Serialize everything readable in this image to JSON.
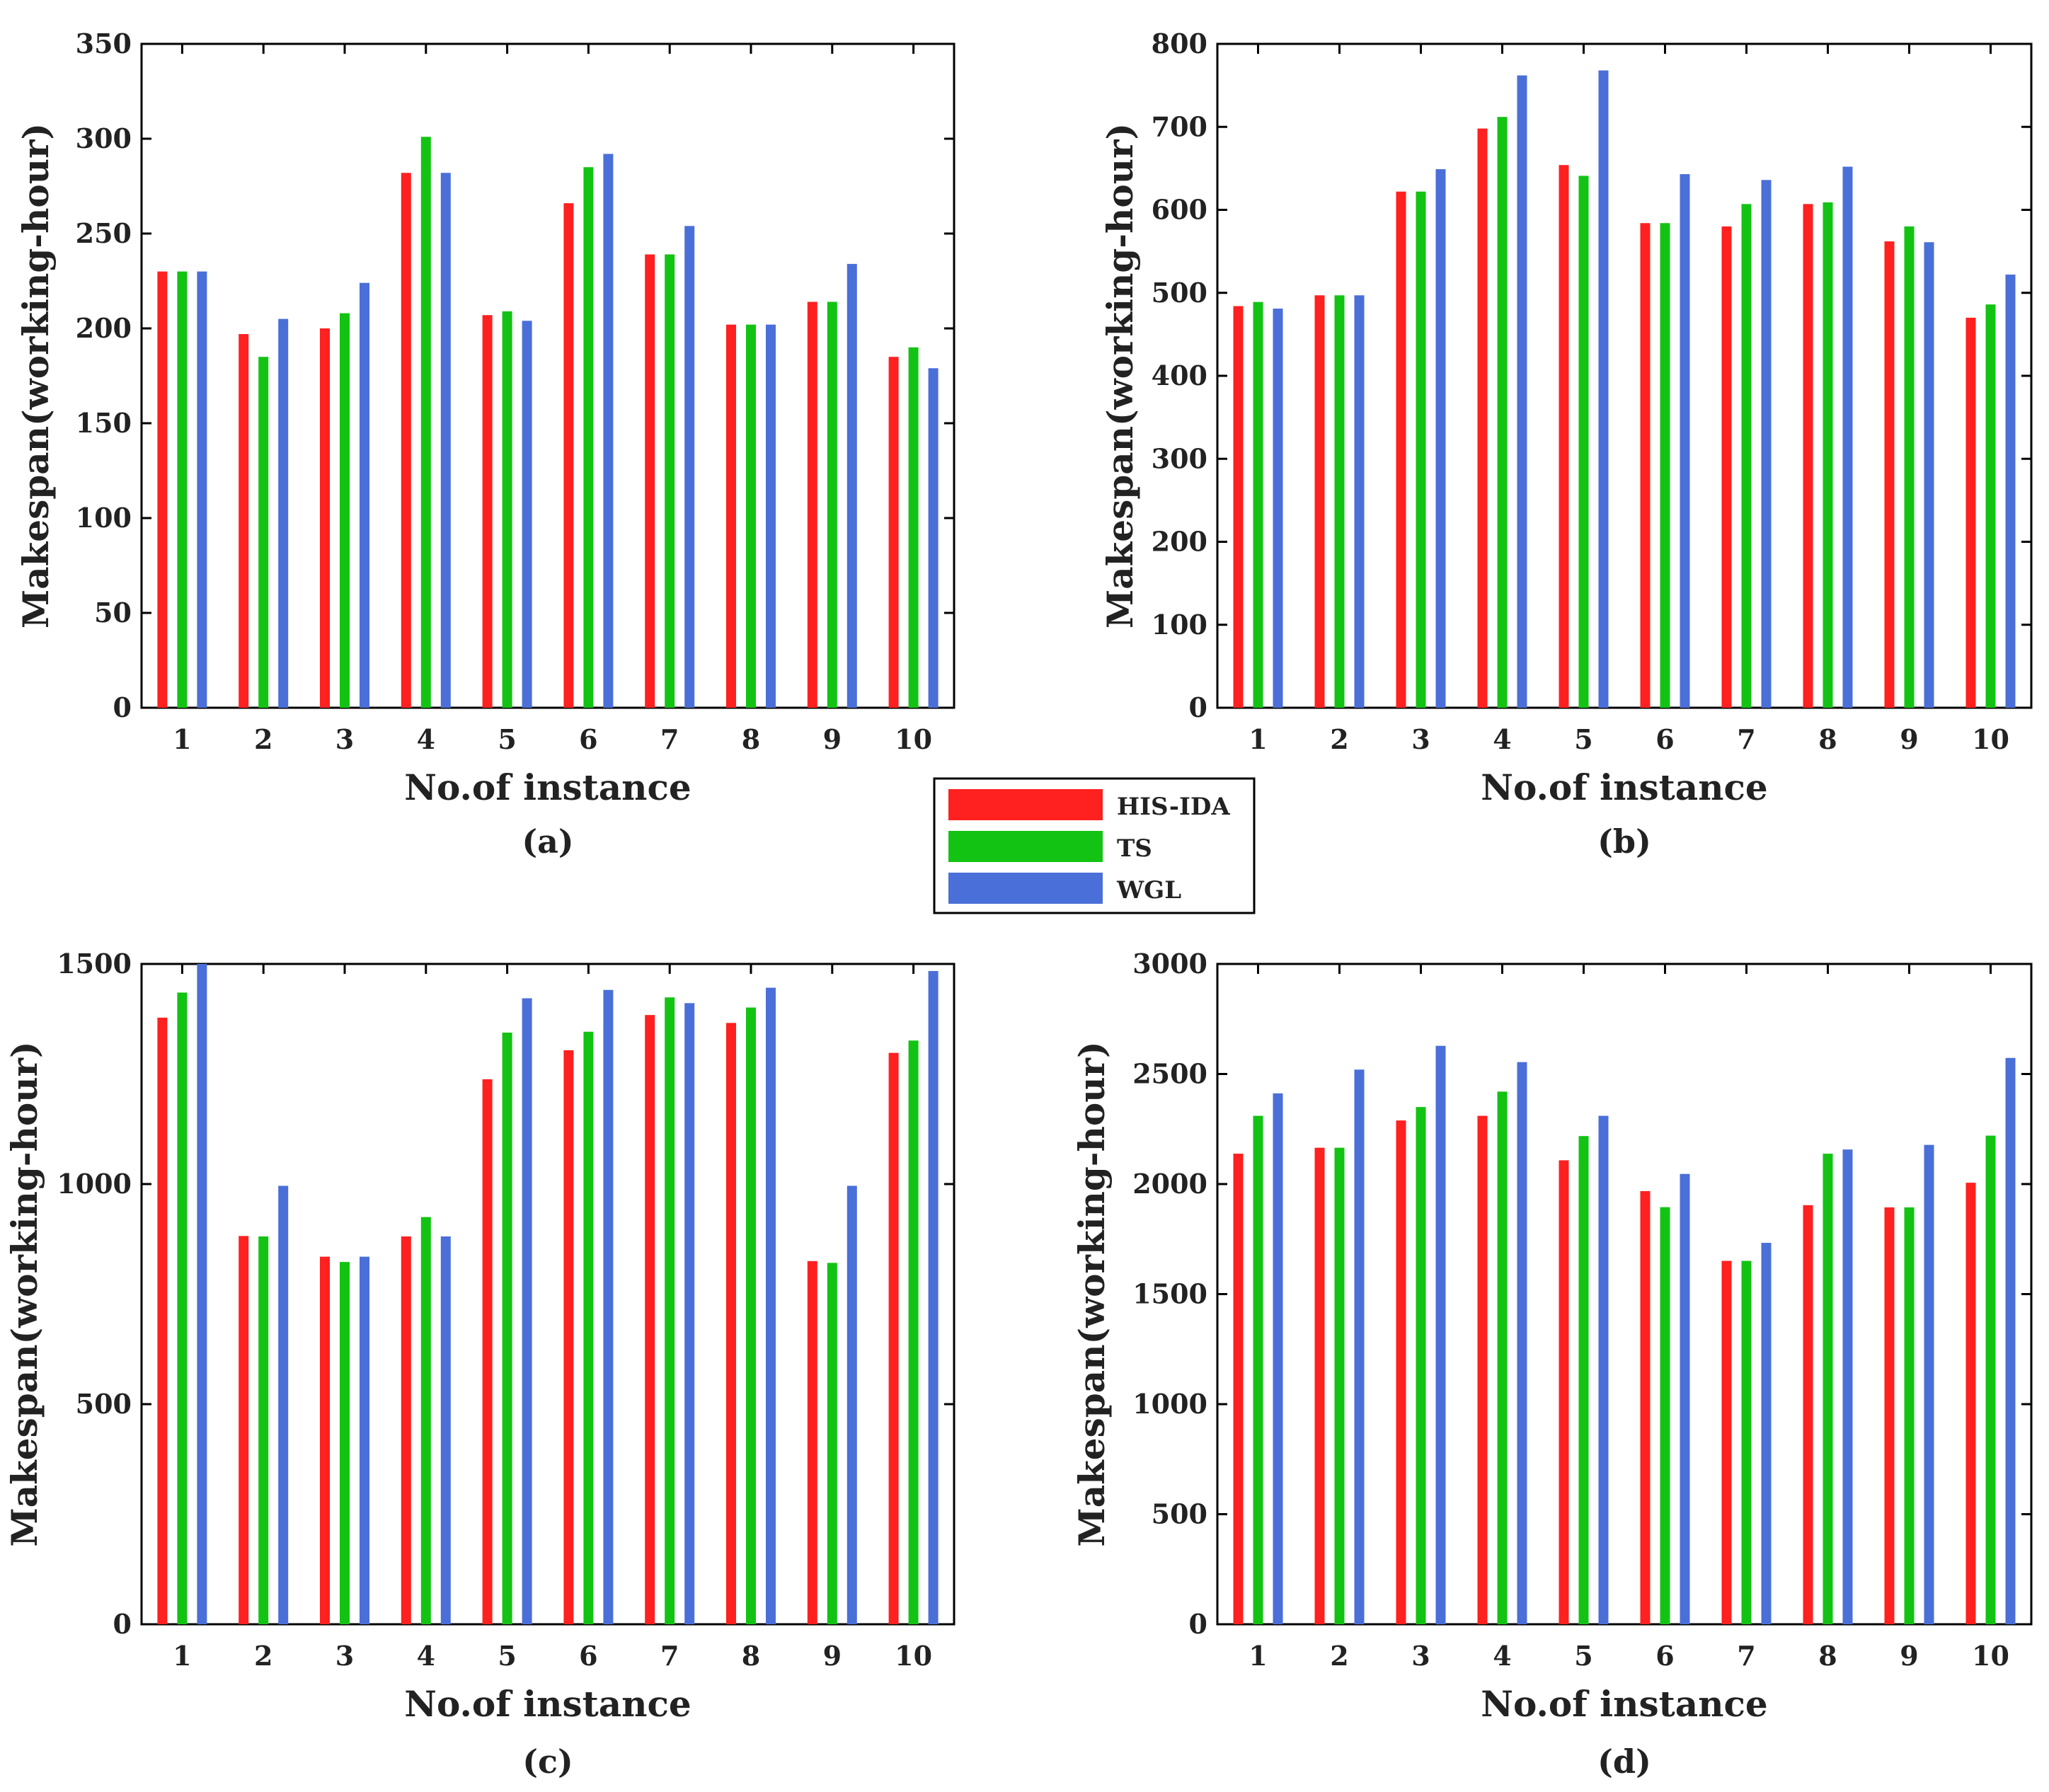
{
  "legend": {
    "entries": [
      {
        "label": "HIS-IDA",
        "color": "#ff2020"
      },
      {
        "label": "TS",
        "color": "#13c313"
      },
      {
        "label": "WGL",
        "color": "#4a6fd8"
      }
    ]
  },
  "chart_data": [
    {
      "type": "bar",
      "panel": "(a)",
      "xlabel": "No.of instance",
      "ylabel": "Makespan(working-hour)",
      "categories": [
        "1",
        "2",
        "3",
        "4",
        "5",
        "6",
        "7",
        "8",
        "9",
        "10"
      ],
      "ylim": [
        0,
        350
      ],
      "yticks": [
        0,
        50,
        100,
        150,
        200,
        250,
        300,
        350
      ],
      "series": [
        {
          "name": "HIS-IDA",
          "values": [
            230,
            197,
            200,
            282,
            207,
            266,
            239,
            202,
            214,
            185
          ]
        },
        {
          "name": "TS",
          "values": [
            230,
            185,
            208,
            301,
            209,
            285,
            239,
            202,
            214,
            190
          ]
        },
        {
          "name": "WGL",
          "values": [
            230,
            205,
            224,
            282,
            204,
            292,
            254,
            202,
            234,
            179
          ]
        }
      ]
    },
    {
      "type": "bar",
      "panel": "(b)",
      "xlabel": "No.of instance",
      "ylabel": "Makespan(working-hour)",
      "categories": [
        "1",
        "2",
        "3",
        "4",
        "5",
        "6",
        "7",
        "8",
        "9",
        "10"
      ],
      "ylim": [
        0,
        800
      ],
      "yticks": [
        0,
        100,
        200,
        300,
        400,
        500,
        600,
        700,
        800
      ],
      "series": [
        {
          "name": "HIS-IDA",
          "values": [
            484,
            497,
            622,
            698,
            654,
            584,
            580,
            607,
            562,
            470
          ]
        },
        {
          "name": "TS",
          "values": [
            489,
            497,
            622,
            712,
            641,
            584,
            607,
            609,
            580,
            486
          ]
        },
        {
          "name": "WGL",
          "values": [
            481,
            497,
            649,
            762,
            768,
            643,
            636,
            652,
            561,
            522
          ]
        }
      ]
    },
    {
      "type": "bar",
      "panel": "(c)",
      "xlabel": "No.of instance",
      "ylabel": "Makespan(working-hour)",
      "categories": [
        "1",
        "2",
        "3",
        "4",
        "5",
        "6",
        "7",
        "8",
        "9",
        "10"
      ],
      "ylim": [
        0,
        1500
      ],
      "yticks": [
        0,
        500,
        1000,
        1500
      ],
      "series": [
        {
          "name": "HIS-IDA",
          "values": [
            1378,
            882,
            835,
            881,
            1238,
            1304,
            1384,
            1366,
            825,
            1298
          ]
        },
        {
          "name": "TS",
          "values": [
            1435,
            881,
            823,
            925,
            1344,
            1346,
            1424,
            1401,
            821,
            1326
          ]
        },
        {
          "name": "WGL",
          "values": [
            1500,
            996,
            835,
            881,
            1422,
            1441,
            1411,
            1446,
            996,
            1484
          ]
        }
      ]
    },
    {
      "type": "bar",
      "panel": "(d)",
      "xlabel": "No.of instance",
      "ylabel": "Makespan(working-hour)",
      "categories": [
        "1",
        "2",
        "3",
        "4",
        "5",
        "6",
        "7",
        "8",
        "9",
        "10"
      ],
      "ylim": [
        0,
        3000
      ],
      "yticks": [
        0,
        500,
        1000,
        1500,
        2000,
        2500,
        3000
      ],
      "series": [
        {
          "name": "HIS-IDA",
          "values": [
            2138,
            2165,
            2289,
            2310,
            2108,
            1968,
            1651,
            1904,
            1894,
            2006
          ]
        },
        {
          "name": "TS",
          "values": [
            2310,
            2165,
            2350,
            2420,
            2218,
            1895,
            1651,
            2138,
            1894,
            2220
          ]
        },
        {
          "name": "WGL",
          "values": [
            2412,
            2520,
            2628,
            2554,
            2310,
            2046,
            1733,
            2157,
            2178,
            2573
          ]
        }
      ]
    }
  ]
}
